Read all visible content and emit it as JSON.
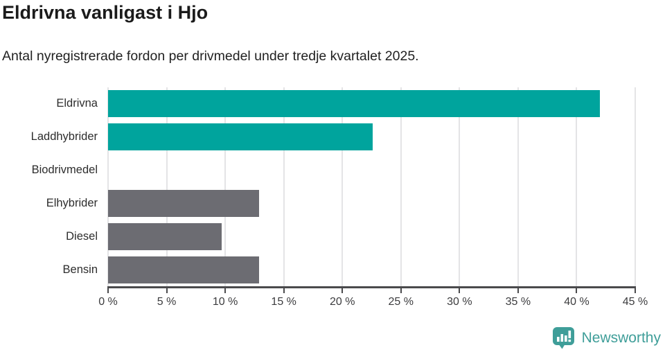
{
  "header": {
    "title": "Eldrivna vanligast i Hjo",
    "subtitle": "Antal nyregistrerade fordon per drivmedel under tredje kvartalet 2025."
  },
  "chart_data": {
    "type": "bar",
    "orientation": "horizontal",
    "title": "Eldrivna vanligast i Hjo",
    "subtitle": "Antal nyregistrerade fordon per drivmedel under tredje kvartalet 2025.",
    "categories": [
      "Eldrivna",
      "Laddhybrider",
      "Biodrivmedel",
      "Elhybrider",
      "Diesel",
      "Bensin"
    ],
    "values": [
      42.0,
      22.6,
      0,
      12.9,
      9.7,
      12.9
    ],
    "bar_colors": [
      "#00a49d",
      "#00a49d",
      "#6c6c72",
      "#6c6c72",
      "#6c6c72",
      "#6c6c72"
    ],
    "highlight_color": "#00a49d",
    "default_color": "#6c6c72",
    "xlim": [
      0,
      45
    ],
    "x_ticks": [
      0,
      5,
      10,
      15,
      20,
      25,
      30,
      35,
      40,
      45
    ],
    "x_tick_suffix": " %",
    "xlabel": "",
    "ylabel": "",
    "grid": true,
    "gridline_color": "#e4e4e6",
    "axis_color": "#4a4a4c",
    "legend": "none"
  },
  "footer": {
    "brand": "Newsworthy",
    "logo_icon": "newsworthy-speech-bubble-bar-chart-icon",
    "brand_color": "#3f9e99"
  }
}
